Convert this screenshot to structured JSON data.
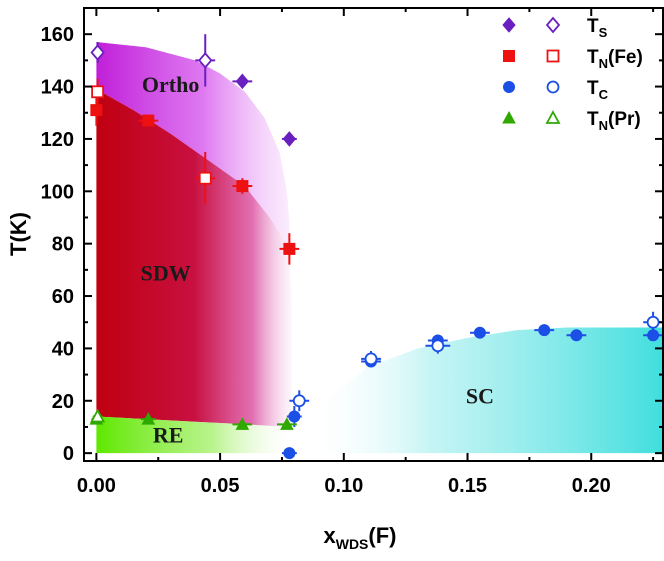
{
  "chart_data": {
    "type": "scatter",
    "xlabel": {
      "main": "x",
      "sub": "WDS",
      "tail": "(F)"
    },
    "ylabel": "T(K)",
    "xlim": [
      -0.005,
      0.229
    ],
    "ylim": [
      -3,
      170
    ],
    "x_ticks": [
      "0.00",
      "0.05",
      "0.10",
      "0.15",
      "0.20"
    ],
    "y_ticks": [
      "0",
      "20",
      "40",
      "60",
      "80",
      "100",
      "120",
      "140",
      "160"
    ],
    "grid": false,
    "legend_position": "top-right",
    "regions": [
      {
        "label": "Ortho",
        "label_at": [
          0.03,
          138
        ],
        "color": "#c01fd8"
      },
      {
        "label": "SDW",
        "label_at": [
          0.028,
          66
        ],
        "color": "#c00010"
      },
      {
        "label": "RE",
        "label_at": [
          0.029,
          4
        ],
        "color": "#5fe800"
      },
      {
        "label": "SC",
        "label_at": [
          0.155,
          19
        ],
        "color": "#40dede"
      }
    ],
    "series": [
      {
        "name": "T_S",
        "legend": {
          "main": "T",
          "sub": "S",
          "tail": ""
        },
        "marker": "diamond",
        "color": "#6a1fbf",
        "filled": [
          {
            "x": 0.059,
            "y": 142,
            "xe": 0.004,
            "ye": 2
          },
          {
            "x": 0.078,
            "y": 120,
            "xe": 0.003,
            "ye": 2
          }
        ],
        "open": [
          {
            "x": 0.0005,
            "y": 153,
            "xe": 0.002,
            "ye": 4
          },
          {
            "x": 0.044,
            "y": 150,
            "xe": 0.004,
            "ye": 10
          }
        ]
      },
      {
        "name": "T_N(Fe)",
        "legend": {
          "main": "T",
          "sub": "N",
          "tail": "(Fe)"
        },
        "marker": "square",
        "color": "#ee1111",
        "filled": [
          {
            "x": 0.0,
            "y": 131,
            "xe": 0.002,
            "ye": 6
          },
          {
            "x": 0.021,
            "y": 127,
            "xe": 0.004,
            "ye": 2
          },
          {
            "x": 0.059,
            "y": 102,
            "xe": 0.004,
            "ye": 3
          },
          {
            "x": 0.078,
            "y": 78,
            "xe": 0.004,
            "ye": 6
          }
        ],
        "open": [
          {
            "x": 0.0005,
            "y": 138,
            "xe": 0.002,
            "ye": 5
          },
          {
            "x": 0.044,
            "y": 105,
            "xe": 0.004,
            "ye": 10
          }
        ]
      },
      {
        "name": "T_C",
        "legend": {
          "main": "T",
          "sub": "C",
          "tail": ""
        },
        "marker": "circle",
        "color": "#1b4fe6",
        "filled": [
          {
            "x": 0.078,
            "y": 0,
            "xe": 0.003,
            "ye": 0
          },
          {
            "x": 0.08,
            "y": 14,
            "xe": 0.003,
            "ye": 4
          },
          {
            "x": 0.111,
            "y": 35,
            "xe": 0.004,
            "ye": 2
          },
          {
            "x": 0.138,
            "y": 43,
            "xe": 0.004,
            "ye": 1
          },
          {
            "x": 0.155,
            "y": 46,
            "xe": 0.004,
            "ye": 1
          },
          {
            "x": 0.181,
            "y": 47,
            "xe": 0.004,
            "ye": 1
          },
          {
            "x": 0.194,
            "y": 45,
            "xe": 0.004,
            "ye": 1
          },
          {
            "x": 0.225,
            "y": 45,
            "xe": 0.004,
            "ye": 1
          }
        ],
        "open": [
          {
            "x": 0.082,
            "y": 20,
            "xe": 0.004,
            "ye": 4
          },
          {
            "x": 0.111,
            "y": 36,
            "xe": 0.004,
            "ye": 3
          },
          {
            "x": 0.138,
            "y": 41,
            "xe": 0.005,
            "ye": 3
          },
          {
            "x": 0.225,
            "y": 50,
            "xe": 0.004,
            "ye": 4
          }
        ]
      },
      {
        "name": "T_N(Pr)",
        "legend": {
          "main": "T",
          "sub": "N",
          "tail": "(Pr)"
        },
        "marker": "triangle",
        "color": "#2fa800",
        "filled": [
          {
            "x": 0.0,
            "y": 13,
            "xe": 0.002,
            "ye": 1
          },
          {
            "x": 0.021,
            "y": 13,
            "xe": 0.003,
            "ye": 1
          },
          {
            "x": 0.059,
            "y": 11,
            "xe": 0.004,
            "ye": 1
          },
          {
            "x": 0.077,
            "y": 11,
            "xe": 0.004,
            "ye": 1
          }
        ],
        "open": [
          {
            "x": 0.0005,
            "y": 14,
            "xe": 0.002,
            "ye": 1
          }
        ]
      }
    ]
  }
}
